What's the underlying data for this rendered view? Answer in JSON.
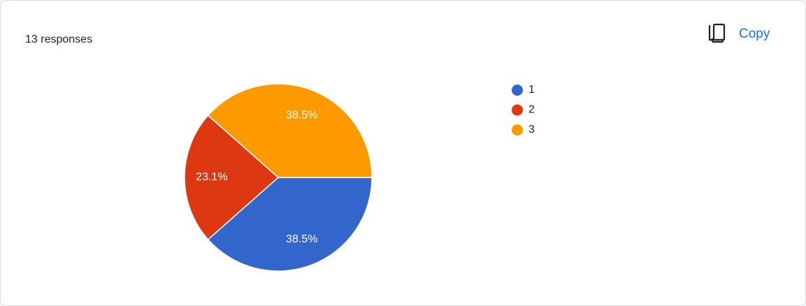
{
  "header": {
    "responses": "13 responses",
    "copy": "Copy"
  },
  "chart_data": {
    "type": "pie",
    "categories": [
      "1",
      "2",
      "3"
    ],
    "values": [
      38.5,
      23.1,
      38.5
    ],
    "value_labels": [
      "38.5%",
      "23.1%",
      "38.5%"
    ],
    "colors": [
      "#3366cc",
      "#dc3912",
      "#ff9900"
    ],
    "legend": "right"
  }
}
